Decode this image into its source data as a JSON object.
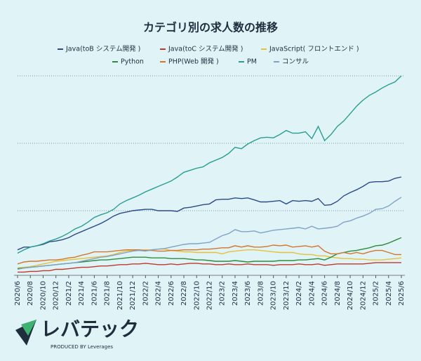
{
  "chart_data": {
    "type": "line",
    "title": "カテゴリ別の求人数の推移",
    "categories": [
      "2020/6",
      null,
      "2020/8",
      null,
      "2020/10",
      null,
      "2020/12",
      null,
      "2021/2",
      null,
      "2021/4",
      null,
      "2021/6",
      null,
      "2021/8",
      null,
      "2021/10",
      null,
      "2021/12",
      null,
      "2022/2",
      null,
      "2022/4",
      null,
      "2022/6",
      null,
      "2022/8",
      null,
      "2022/10",
      null,
      "2022/12",
      null,
      "2023/2",
      null,
      "2023/4",
      null,
      "2023/6",
      null,
      "2023/8",
      null,
      "2023/10",
      null,
      "2023/12",
      null,
      "2024/2",
      null,
      "2024/4",
      null,
      "2024/6",
      null,
      "2024/8",
      null,
      "2024/10",
      null,
      "2024/12",
      null,
      "2025/2",
      null,
      "2025/4",
      null,
      "2025/6"
    ],
    "series": [
      {
        "name": "Java(toB システム開発 )",
        "color": "#2b4a8a",
        "values": [
          42,
          46,
          46,
          48,
          50,
          54,
          55,
          57,
          60,
          65,
          69,
          73,
          77,
          81,
          86,
          92,
          96,
          98,
          100,
          101,
          102,
          102,
          100,
          100,
          100,
          99,
          104,
          105,
          107,
          109,
          110,
          116,
          117,
          117,
          119,
          118,
          119,
          116,
          113,
          113,
          114,
          115,
          110,
          115,
          114,
          115,
          114,
          118,
          108,
          109,
          114,
          122,
          127,
          131,
          136,
          142,
          143,
          143,
          144,
          148,
          150
        ]
      },
      {
        "name": "Java(toC システム開発 )",
        "color": "#c0392b",
        "values": [
          9,
          9,
          10,
          10,
          11,
          11,
          13,
          13,
          14,
          15,
          16,
          16,
          17,
          18,
          18,
          19,
          20,
          20,
          21,
          21,
          22,
          21,
          20,
          20,
          21,
          20,
          21,
          22,
          22,
          21,
          21,
          20,
          20,
          21,
          20,
          20,
          21,
          20,
          20,
          20,
          19,
          20,
          20,
          20,
          21,
          20,
          20,
          21,
          19,
          20,
          21,
          21,
          21,
          21,
          21,
          22,
          23,
          23,
          23,
          23,
          23
        ]
      },
      {
        "name": "JavaScript( フロントエンド )",
        "color": "#e6c13a",
        "values": [
          15,
          16,
          17,
          19,
          21,
          23,
          25,
          26,
          27,
          28,
          29,
          30,
          31,
          32,
          33,
          35,
          38,
          40,
          41,
          41,
          42,
          42,
          43,
          43,
          41,
          40,
          39,
          39,
          38,
          38,
          38,
          38,
          36,
          39,
          40,
          41,
          42,
          42,
          41,
          40,
          39,
          38,
          38,
          38,
          36,
          35,
          35,
          33,
          33,
          31,
          30,
          29,
          29,
          28,
          28,
          27,
          27,
          27,
          28,
          29,
          30
        ]
      },
      {
        "name": "Python",
        "color": "#2e8b3a",
        "values": [
          14,
          15,
          16,
          17,
          18,
          19,
          20,
          21,
          22,
          23,
          24,
          25,
          26,
          27,
          27,
          28,
          29,
          30,
          31,
          31,
          31,
          30,
          30,
          30,
          29,
          29,
          29,
          28,
          27,
          27,
          26,
          25,
          25,
          25,
          26,
          25,
          24,
          25,
          25,
          25,
          25,
          26,
          26,
          26,
          27,
          27,
          28,
          29,
          27,
          31,
          36,
          38,
          40,
          41,
          43,
          45,
          48,
          49,
          52,
          56,
          60
        ]
      },
      {
        "name": "PHP(Web 開発 )",
        "color": "#d4762a",
        "values": [
          21,
          24,
          25,
          25,
          26,
          27,
          27,
          28,
          30,
          31,
          34,
          36,
          39,
          39,
          39,
          40,
          41,
          42,
          42,
          42,
          41,
          41,
          40,
          40,
          41,
          41,
          42,
          42,
          42,
          43,
          43,
          44,
          45,
          45,
          48,
          46,
          48,
          46,
          46,
          47,
          49,
          48,
          49,
          46,
          47,
          48,
          46,
          48,
          40,
          36,
          36,
          38,
          36,
          38,
          36,
          39,
          41,
          41,
          38,
          35,
          35
        ]
      },
      {
        "name": "PM",
        "color": "#2a9d8f",
        "values": [
          37,
          42,
          46,
          48,
          51,
          55,
          58,
          62,
          67,
          73,
          77,
          83,
          90,
          94,
          97,
          102,
          110,
          115,
          119,
          123,
          128,
          132,
          136,
          140,
          144,
          150,
          157,
          160,
          163,
          165,
          171,
          175,
          179,
          185,
          194,
          192,
          199,
          204,
          208,
          209,
          208,
          213,
          219,
          215,
          215,
          217,
          207,
          225,
          204,
          213,
          225,
          233,
          244,
          255,
          264,
          271,
          276,
          282,
          287,
          291,
          300
        ]
      },
      {
        "name": "コンサル",
        "color": "#7fa3c8",
        "values": [
          13,
          15,
          16,
          17,
          18,
          19,
          20,
          21,
          22,
          23,
          25,
          27,
          29,
          31,
          32,
          34,
          36,
          38,
          40,
          41,
          40,
          42,
          43,
          44,
          46,
          48,
          50,
          51,
          51,
          52,
          53,
          58,
          63,
          66,
          72,
          69,
          69,
          70,
          67,
          69,
          71,
          72,
          73,
          74,
          75,
          73,
          77,
          73,
          74,
          75,
          77,
          83,
          85,
          89,
          92,
          96,
          102,
          103,
          107,
          114,
          120
        ]
      }
    ],
    "ylim": [
      0,
      300
    ],
    "ygrid": [
      100,
      200,
      300
    ]
  },
  "logo": {
    "name": "レバテック",
    "tagline": "PRODUCED BY Leverages"
  }
}
